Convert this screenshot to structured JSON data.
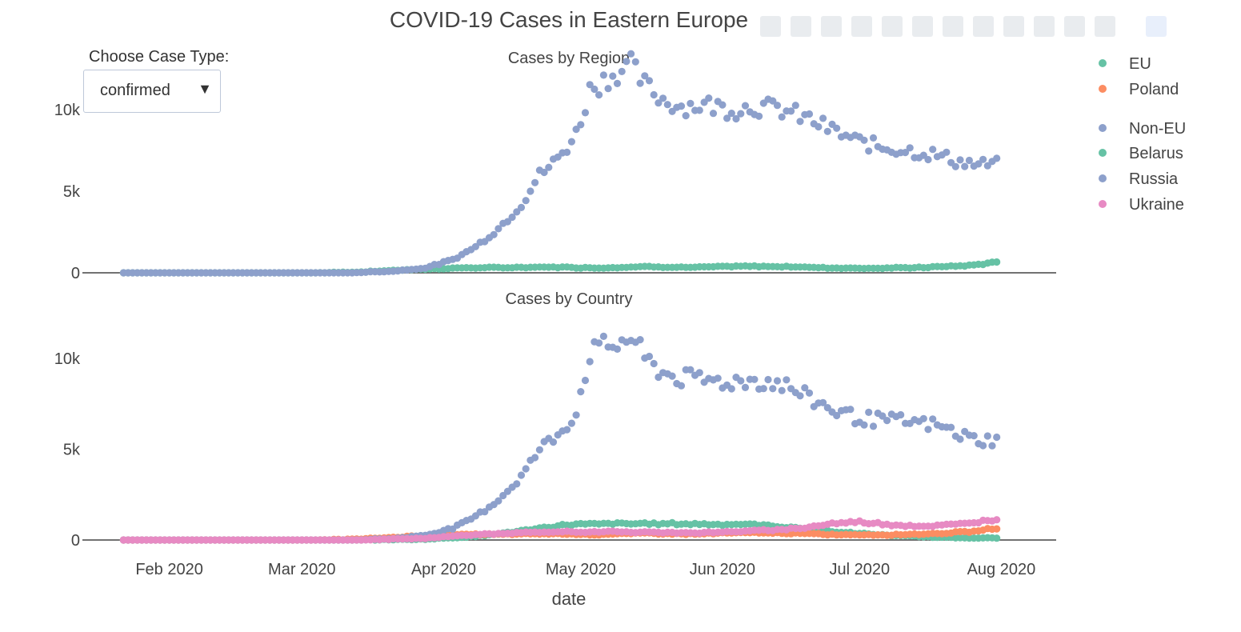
{
  "chart_data": {
    "type": "scatter",
    "title": "COVID-19 Cases in Eastern Europe",
    "xlabel": "date",
    "x_range": [
      "2020-01-13",
      "2020-08-13"
    ],
    "x_ticks": [
      {
        "date": "2020-02-01",
        "label": "Feb 2020"
      },
      {
        "date": "2020-03-01",
        "label": "Mar 2020"
      },
      {
        "date": "2020-04-01",
        "label": "Apr 2020"
      },
      {
        "date": "2020-05-01",
        "label": "May 2020"
      },
      {
        "date": "2020-06-01",
        "label": "Jun 2020"
      },
      {
        "date": "2020-07-01",
        "label": "Jul 2020"
      },
      {
        "date": "2020-08-01",
        "label": "Aug 2020"
      }
    ],
    "data_start": "2020-01-22",
    "data_end": "2020-07-31",
    "grid": false,
    "legend_placement": "right",
    "legend": [
      {
        "name": "EU",
        "color": "#66c2a5"
      },
      {
        "name": "Poland",
        "color": "#fc8d62"
      },
      {
        "name": "Non-EU",
        "color": "#8da0cb"
      },
      {
        "name": "Belarus",
        "color": "#66c2a5"
      },
      {
        "name": "Russia",
        "color": "#8da0cb"
      },
      {
        "name": "Ukraine",
        "color": "#e78ac3"
      }
    ],
    "panels": [
      {
        "subtitle": "Cases by Region",
        "yticks": [
          {
            "value": 0,
            "label": "0"
          },
          {
            "value": 5000,
            "label": "5k"
          },
          {
            "value": 10000,
            "label": "10k"
          }
        ],
        "ylim": [
          0,
          13000
        ],
        "series": [
          {
            "name": "EU",
            "color": "#66c2a5",
            "anchors": [
              [
                "2020-01-22",
                0
              ],
              [
                "2020-03-04",
                0
              ],
              [
                "2020-03-14",
                50
              ],
              [
                "2020-03-25",
                200
              ],
              [
                "2020-04-05",
                300
              ],
              [
                "2020-04-15",
                320
              ],
              [
                "2020-04-25",
                350
              ],
              [
                "2020-05-05",
                300
              ],
              [
                "2020-05-15",
                380
              ],
              [
                "2020-05-25",
                330
              ],
              [
                "2020-06-05",
                400
              ],
              [
                "2020-06-15",
                380
              ],
              [
                "2020-06-25",
                300
              ],
              [
                "2020-07-05",
                280
              ],
              [
                "2020-07-15",
                330
              ],
              [
                "2020-07-25",
                450
              ],
              [
                "2020-07-31",
                650
              ]
            ]
          },
          {
            "name": "Non-EU",
            "color": "#8da0cb",
            "anchors": [
              [
                "2020-01-22",
                0
              ],
              [
                "2020-03-11",
                0
              ],
              [
                "2020-03-21",
                100
              ],
              [
                "2020-03-28",
                300
              ],
              [
                "2020-04-03",
                800
              ],
              [
                "2020-04-08",
                1600
              ],
              [
                "2020-04-13",
                2700
              ],
              [
                "2020-04-18",
                4200
              ],
              [
                "2020-04-22",
                6000
              ],
              [
                "2020-04-26",
                7000
              ],
              [
                "2020-04-30",
                8500
              ],
              [
                "2020-05-03",
                11200
              ],
              [
                "2020-05-06",
                11800
              ],
              [
                "2020-05-09",
                12300
              ],
              [
                "2020-05-12",
                12700
              ],
              [
                "2020-05-15",
                11500
              ],
              [
                "2020-05-19",
                10600
              ],
              [
                "2020-05-23",
                10200
              ],
              [
                "2020-05-29",
                10300
              ],
              [
                "2020-06-03",
                10000
              ],
              [
                "2020-06-08",
                10200
              ],
              [
                "2020-06-14",
                10000
              ],
              [
                "2020-06-20",
                9400
              ],
              [
                "2020-06-26",
                8600
              ],
              [
                "2020-07-01",
                8000
              ],
              [
                "2020-07-06",
                7700
              ],
              [
                "2020-07-12",
                7500
              ],
              [
                "2020-07-18",
                7200
              ],
              [
                "2020-07-23",
                6800
              ],
              [
                "2020-07-27",
                6600
              ],
              [
                "2020-07-31",
                6650
              ]
            ]
          }
        ]
      },
      {
        "subtitle": "Cases by Country",
        "yticks": [
          {
            "value": 0,
            "label": "0"
          },
          {
            "value": 5000,
            "label": "5k"
          },
          {
            "value": 10000,
            "label": "10k"
          }
        ],
        "ylim": [
          0,
          13000
        ],
        "series": [
          {
            "name": "Belarus",
            "color": "#66c2a5",
            "anchors": [
              [
                "2020-01-22",
                0
              ],
              [
                "2020-03-14",
                0
              ],
              [
                "2020-03-28",
                50
              ],
              [
                "2020-04-08",
                200
              ],
              [
                "2020-04-18",
                500
              ],
              [
                "2020-04-28",
                850
              ],
              [
                "2020-05-08",
                900
              ],
              [
                "2020-05-18",
                900
              ],
              [
                "2020-05-28",
                880
              ],
              [
                "2020-06-08",
                850
              ],
              [
                "2020-06-18",
                650
              ],
              [
                "2020-06-28",
                400
              ],
              [
                "2020-07-08",
                250
              ],
              [
                "2020-07-18",
                150
              ],
              [
                "2020-07-31",
                100
              ]
            ]
          },
          {
            "name": "Poland",
            "color": "#fc8d62",
            "anchors": [
              [
                "2020-01-22",
                0
              ],
              [
                "2020-03-04",
                0
              ],
              [
                "2020-03-14",
                50
              ],
              [
                "2020-03-25",
                200
              ],
              [
                "2020-04-05",
                300
              ],
              [
                "2020-04-15",
                320
              ],
              [
                "2020-04-25",
                350
              ],
              [
                "2020-05-05",
                300
              ],
              [
                "2020-05-15",
                380
              ],
              [
                "2020-05-25",
                330
              ],
              [
                "2020-06-05",
                400
              ],
              [
                "2020-06-15",
                380
              ],
              [
                "2020-06-25",
                300
              ],
              [
                "2020-07-05",
                280
              ],
              [
                "2020-07-15",
                330
              ],
              [
                "2020-07-25",
                450
              ],
              [
                "2020-07-31",
                650
              ]
            ]
          },
          {
            "name": "Russia",
            "color": "#8da0cb",
            "anchors": [
              [
                "2020-01-22",
                0
              ],
              [
                "2020-03-11",
                0
              ],
              [
                "2020-03-21",
                80
              ],
              [
                "2020-03-28",
                250
              ],
              [
                "2020-04-03",
                650
              ],
              [
                "2020-04-08",
                1300
              ],
              [
                "2020-04-13",
                2200
              ],
              [
                "2020-04-18",
                3500
              ],
              [
                "2020-04-22",
                5000
              ],
              [
                "2020-04-26",
                5800
              ],
              [
                "2020-04-30",
                7000
              ],
              [
                "2020-05-03",
                10300
              ],
              [
                "2020-05-06",
                10600
              ],
              [
                "2020-05-09",
                10800
              ],
              [
                "2020-05-12",
                11200
              ],
              [
                "2020-05-15",
                10000
              ],
              [
                "2020-05-19",
                9200
              ],
              [
                "2020-05-23",
                8900
              ],
              [
                "2020-05-29",
                8800
              ],
              [
                "2020-06-03",
                8700
              ],
              [
                "2020-06-08",
                8800
              ],
              [
                "2020-06-14",
                8600
              ],
              [
                "2020-06-20",
                7800
              ],
              [
                "2020-06-26",
                7100
              ],
              [
                "2020-07-01",
                6700
              ],
              [
                "2020-07-06",
                6600
              ],
              [
                "2020-07-12",
                6500
              ],
              [
                "2020-07-18",
                6300
              ],
              [
                "2020-07-23",
                5800
              ],
              [
                "2020-07-27",
                5500
              ],
              [
                "2020-07-31",
                5500
              ]
            ]
          },
          {
            "name": "Ukraine",
            "color": "#e78ac3",
            "anchors": [
              [
                "2020-01-22",
                0
              ],
              [
                "2020-03-14",
                0
              ],
              [
                "2020-03-28",
                100
              ],
              [
                "2020-04-08",
                300
              ],
              [
                "2020-04-18",
                400
              ],
              [
                "2020-04-28",
                450
              ],
              [
                "2020-05-08",
                450
              ],
              [
                "2020-05-18",
                420
              ],
              [
                "2020-05-28",
                400
              ],
              [
                "2020-06-08",
                500
              ],
              [
                "2020-06-18",
                650
              ],
              [
                "2020-06-25",
                900
              ],
              [
                "2020-07-01",
                1000
              ],
              [
                "2020-07-08",
                850
              ],
              [
                "2020-07-15",
                750
              ],
              [
                "2020-07-22",
                850
              ],
              [
                "2020-07-27",
                1000
              ],
              [
                "2020-07-31",
                1150
              ]
            ]
          }
        ]
      }
    ]
  },
  "controls": {
    "label": "Choose Case Type:",
    "selected": "confirmed",
    "caret": "▼"
  }
}
